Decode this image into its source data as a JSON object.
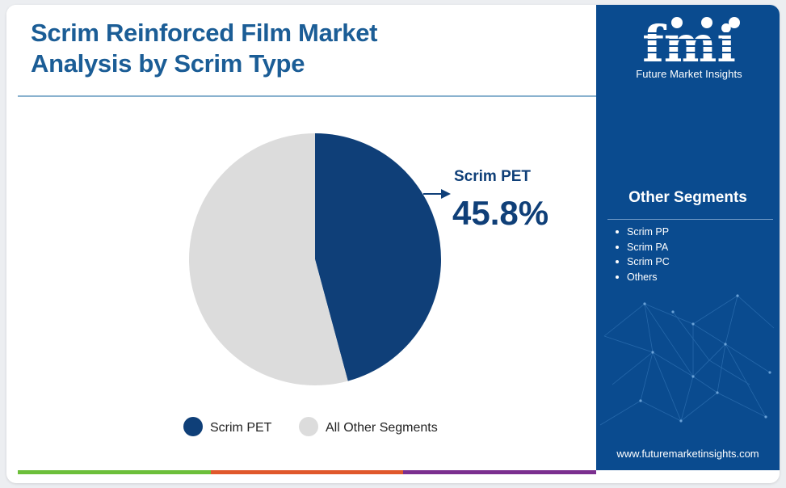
{
  "title": "Scrim Reinforced Film Market Analysis by Scrim Type",
  "chart_data": {
    "type": "pie",
    "slices": [
      {
        "name": "Scrim PET",
        "value": 45.8,
        "color": "#0f3f78"
      },
      {
        "name": "All Other Segments",
        "value": 54.2,
        "color": "#dcdcdc"
      }
    ],
    "callout": {
      "label": "Scrim PET",
      "value": "45.8%"
    },
    "legend": [
      "Scrim PET",
      "All Other Segments"
    ],
    "legend_placement": "bottom"
  },
  "sidebar": {
    "logo_text": "fmi",
    "logo_subtitle": "Future Market Insights",
    "segments_title": "Other Segments",
    "segments": [
      "Scrim PP",
      "Scrim PA",
      "Scrim PC",
      "Others"
    ],
    "website": "www.futuremarketinsights.com"
  },
  "colors": {
    "title": "#1b5d96",
    "sidebar_bg": "#0a4b8f",
    "primary_slice": "#0f3f78",
    "other_slice": "#dcdcdc",
    "bottom_bar": [
      "#6cbf3a",
      "#e0582c",
      "#7b2f8f"
    ]
  }
}
